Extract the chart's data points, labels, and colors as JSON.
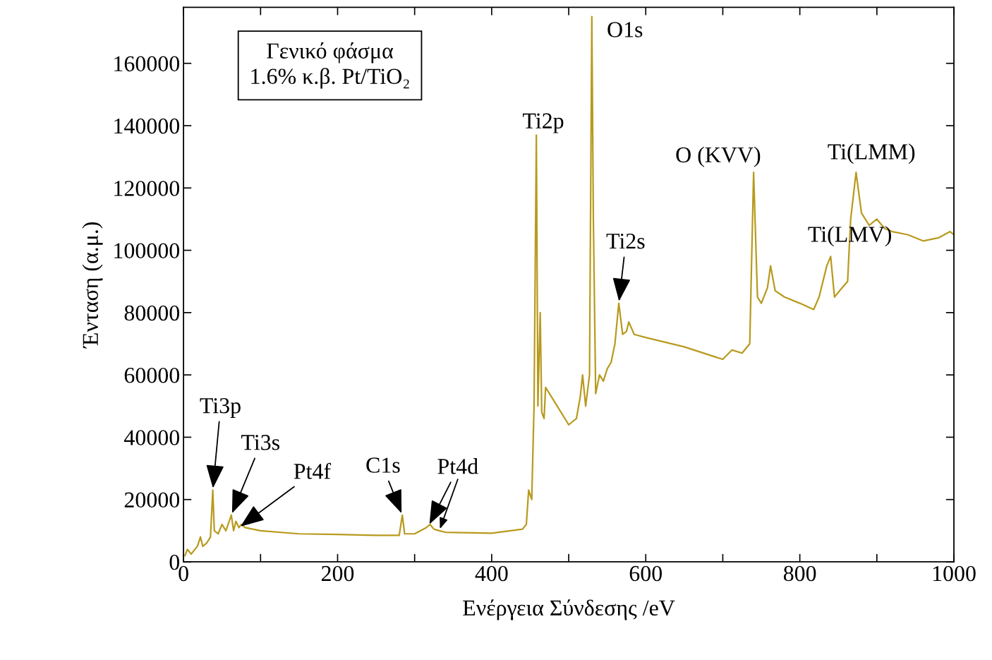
{
  "chart_data": {
    "type": "line",
    "xlabel": "Ενέργεια Σύνδεσης /eV",
    "ylabel": "Ένταση (α.μ.)",
    "xlim": [
      0,
      1000
    ],
    "xticks": [
      0,
      {
        "value": 100,
        "label": null
      },
      200,
      {
        "value": 300,
        "label": null
      },
      400,
      {
        "value": 500,
        "label": null
      },
      600,
      {
        "value": 700,
        "label": null
      },
      800,
      {
        "value": 900,
        "label": null
      },
      1000
    ],
    "ylim": [
      0,
      178000
    ],
    "yticks": [
      0,
      20000,
      40000,
      60000,
      80000,
      100000,
      120000,
      140000,
      160000
    ],
    "grid": false,
    "legend": false,
    "marker": "none",
    "line_style": "solid",
    "series": [
      {
        "color": "#b89a1e",
        "x": [
          2,
          5,
          10,
          18,
          22,
          25,
          30,
          35,
          38,
          40,
          45,
          50,
          55,
          62,
          65,
          68,
          72,
          75,
          80,
          100,
          150,
          200,
          250,
          280,
          284,
          287,
          300,
          315,
          320,
          325,
          332,
          340,
          400,
          440,
          445,
          448,
          452,
          455,
          458,
          460,
          463,
          465,
          468,
          470,
          480,
          500,
          510,
          515,
          518,
          522,
          527,
          530,
          532,
          535,
          540,
          545,
          550,
          555,
          560,
          565,
          570,
          575,
          578,
          585,
          600,
          650,
          700,
          712,
          725,
          735,
          740,
          745,
          750,
          758,
          762,
          768,
          780,
          800,
          818,
          825,
          835,
          840,
          845,
          855,
          862,
          866,
          873,
          880,
          890,
          900,
          910,
          920,
          940,
          960,
          980,
          995,
          1000
        ],
        "values": [
          2000,
          4000,
          2500,
          5000,
          8000,
          5000,
          6000,
          8000,
          23000,
          10000,
          9000,
          12000,
          10000,
          15000,
          10000,
          13000,
          11000,
          12000,
          11000,
          10000,
          9000,
          8800,
          8500,
          8500,
          15000,
          9000,
          9000,
          11000,
          12000,
          10500,
          10000,
          9500,
          9200,
          10500,
          12000,
          23000,
          20000,
          50000,
          137000,
          50000,
          80000,
          48000,
          46000,
          56000,
          52000,
          44000,
          46000,
          53000,
          60000,
          50000,
          60000,
          175000,
          110000,
          54000,
          60000,
          58000,
          62000,
          64000,
          70000,
          83000,
          73000,
          74000,
          77000,
          73000,
          72000,
          69000,
          65000,
          68000,
          67000,
          70000,
          125000,
          85000,
          83000,
          88000,
          95000,
          87000,
          85000,
          83000,
          81000,
          85000,
          95000,
          98000,
          85000,
          88000,
          90000,
          110000,
          125000,
          112000,
          108000,
          110000,
          107000,
          106000,
          105000,
          103000,
          104000,
          106000,
          105000
        ]
      }
    ],
    "annotations": [
      "Γενικό φάσμα\n1.6% κ.β. Pt/TiO₂",
      {
        "text": "Ti3p",
        "x": 38,
        "y": 23000
      },
      {
        "text": "Ti3s",
        "x": 62,
        "y": 15000
      },
      {
        "text": "Pt4f",
        "x": 72,
        "y": 11000
      },
      {
        "text": "C1s",
        "x": 284,
        "y": 15000
      },
      {
        "text": "Pt4d",
        "x": 318,
        "y": 11500
      },
      {
        "text": "Ti2s",
        "x": 565,
        "y": 83000
      },
      {
        "text": "O1s",
        "x": 530,
        "y": 175000
      },
      {
        "text": "Ti2p",
        "x": 458,
        "y": 137000
      },
      {
        "text": "O (KVV)",
        "x": 740,
        "y": 125000
      },
      {
        "text": "Ti(LMM)",
        "x": 873,
        "y": 125000
      },
      {
        "text": "Ti(LMV)",
        "x": 840,
        "y": 98000
      }
    ]
  }
}
